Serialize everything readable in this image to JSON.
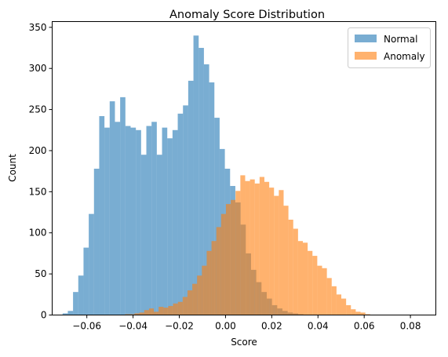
{
  "chart_data": {
    "type": "histogram",
    "title": "Anomaly Score Distribution",
    "xlabel": "Score",
    "ylabel": "Count",
    "xlim": [
      -0.075,
      0.091
    ],
    "ylim": [
      0,
      357
    ],
    "xticks": [
      -0.06,
      -0.04,
      -0.02,
      0.0,
      0.02,
      0.04,
      0.06,
      0.08
    ],
    "xtick_labels": [
      "−0.06",
      "−0.04",
      "−0.02",
      "0.00",
      "0.02",
      "0.04",
      "0.06",
      "0.08"
    ],
    "yticks": [
      0,
      50,
      100,
      150,
      200,
      250,
      300,
      350
    ],
    "ytick_labels": [
      "0",
      "50",
      "100",
      "150",
      "200",
      "250",
      "300",
      "350"
    ],
    "legend": {
      "placement": "upper-right"
    },
    "series": [
      {
        "name": "Normal",
        "color": "#1f77b4",
        "alpha": 0.6,
        "bin_start": -0.0705,
        "bin_width": 0.002265,
        "counts": [
          2,
          5,
          28,
          48,
          82,
          123,
          178,
          242,
          228,
          260,
          235,
          265,
          230,
          228,
          225,
          195,
          230,
          235,
          195,
          228,
          215,
          225,
          245,
          255,
          285,
          340,
          325,
          305,
          283,
          240,
          202,
          178,
          157,
          137,
          110,
          75,
          55,
          40,
          28,
          20,
          12,
          8,
          5,
          3,
          2,
          1
        ]
      },
      {
        "name": "Anomaly",
        "color": "#ff7f0e",
        "alpha": 0.6,
        "bin_start": -0.0435,
        "bin_width": 0.00208,
        "counts": [
          1,
          1,
          2,
          3,
          6,
          8,
          4,
          10,
          9,
          11,
          14,
          16,
          22,
          30,
          38,
          48,
          60,
          78,
          90,
          107,
          123,
          135,
          140,
          151,
          170,
          163,
          165,
          160,
          168,
          162,
          155,
          145,
          152,
          133,
          116,
          105,
          90,
          88,
          78,
          72,
          60,
          57,
          45,
          35,
          25,
          20,
          12,
          7,
          4,
          3,
          1
        ]
      }
    ]
  }
}
